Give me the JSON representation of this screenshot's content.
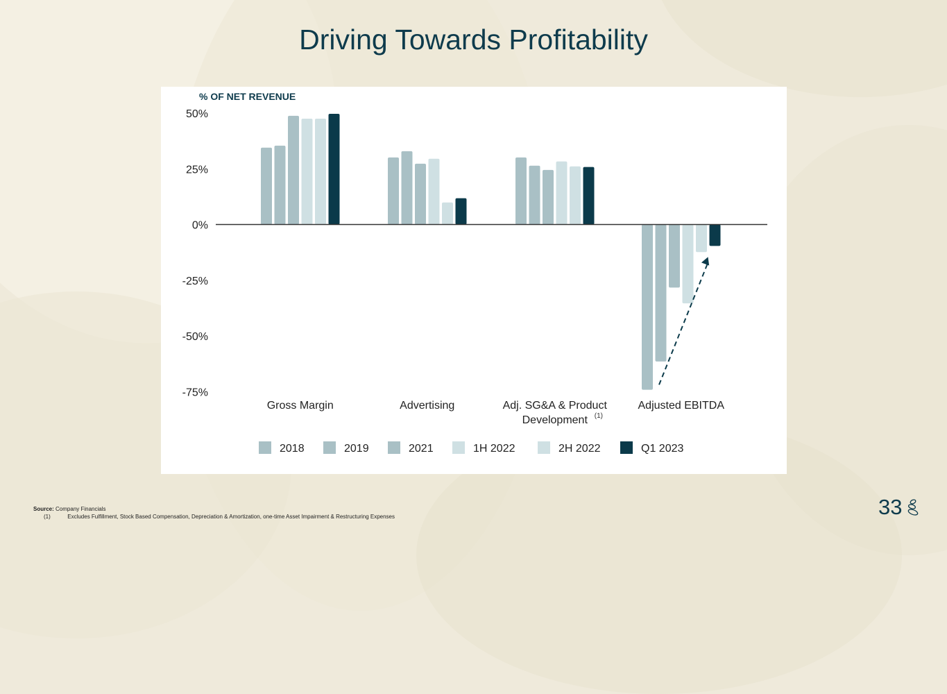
{
  "slide": {
    "title": "Driving Towards Profitability",
    "page_number": "33",
    "logo_icon": "stacked-stones-logo-icon",
    "footer": {
      "source_label": "Source:",
      "source_text": "Company Financials",
      "note_marker": "(1)",
      "note_text": "Excludes Fulfillment, Stock Based Compensation, Depreciation & Amortization, one-time Asset Impairment & Restructuring Expenses"
    }
  },
  "colors": {
    "title": "#0e3b4c",
    "bar_dark": "#0b3a4a",
    "bar_mid": "#a9c0c5",
    "bar_light": "#cfe0e3",
    "axis": "#333333",
    "arrow": "#0b3a4a"
  },
  "chart_data": {
    "type": "bar",
    "title": "",
    "ylabel": "% OF NET REVENUE",
    "xlabel": "",
    "ylim": [
      -75,
      50
    ],
    "yticks": [
      50,
      25,
      0,
      -25,
      -50,
      -75
    ],
    "ytick_labels": [
      "50%",
      "25%",
      "0%",
      "-25%",
      "-50%",
      "-75%"
    ],
    "grid": false,
    "legend_position": "bottom",
    "categories": [
      "Gross Margin",
      "Advertising",
      "Adj. SG&A & Product Development",
      "Adjusted EBITDA"
    ],
    "category_label_lines": [
      [
        "Gross Margin"
      ],
      [
        "Advertising"
      ],
      [
        "Adj. SG&A & Product",
        "Development"
      ],
      [
        "Adjusted EBITDA"
      ]
    ],
    "category_footnotes": [
      "",
      "",
      "(1)",
      ""
    ],
    "series": [
      {
        "name": "2018",
        "color": "#a9c0c5",
        "values": [
          34.5,
          30.1,
          30.1,
          -74.2
        ]
      },
      {
        "name": "2019",
        "color": "#a9c0c5",
        "values": [
          35.4,
          32.9,
          26.4,
          -61.5
        ]
      },
      {
        "name": "2021",
        "color": "#a9c0c5",
        "values": [
          48.8,
          27.3,
          24.5,
          -28.3
        ]
      },
      {
        "name": "1H 2022",
        "color": "#cfe0e3",
        "values": [
          47.5,
          29.5,
          28.3,
          -35.4
        ]
      },
      {
        "name": "2H 2022",
        "color": "#cfe0e3",
        "values": [
          47.5,
          9.9,
          26.1,
          -12.4
        ]
      },
      {
        "name": "Q1 2023",
        "color": "#0b3a4a",
        "values": [
          49.7,
          11.8,
          25.8,
          -9.6
        ]
      }
    ],
    "annotations": [
      {
        "type": "dashed-arrow",
        "category": "Adjusted EBITDA",
        "from": {
          "series": "2018",
          "value": -71
        },
        "to": {
          "series": "Q1 2023",
          "value": -13
        },
        "meaning": "improvement trend"
      }
    ]
  }
}
